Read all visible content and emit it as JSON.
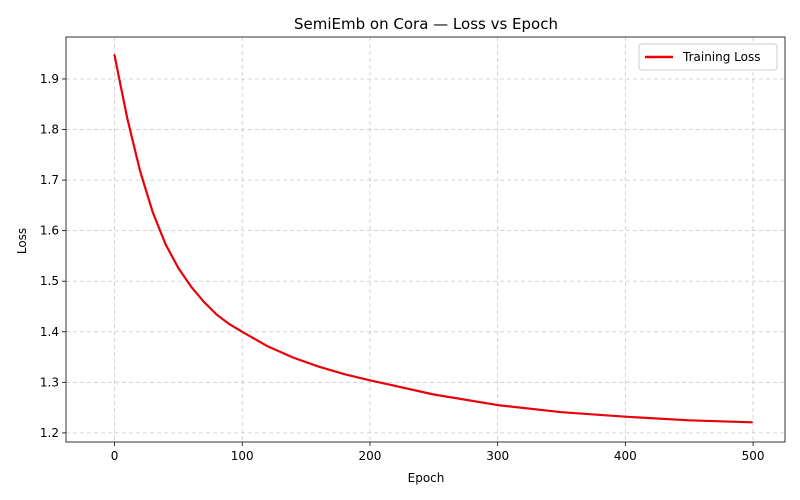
{
  "chart_data": {
    "type": "line",
    "title": "SemiEmb on Cora — Loss vs Epoch",
    "xlabel": "Epoch",
    "ylabel": "Loss",
    "xlim": [
      -38,
      525
    ],
    "ylim": [
      1.182,
      1.983
    ],
    "xticks": [
      0,
      100,
      200,
      300,
      400,
      500
    ],
    "yticks": [
      1.2,
      1.3,
      1.4,
      1.5,
      1.6,
      1.7,
      1.8,
      1.9
    ],
    "xtick_labels": [
      "0",
      "100",
      "200",
      "300",
      "400",
      "500"
    ],
    "ytick_labels": [
      "1.2",
      "1.3",
      "1.4",
      "1.5",
      "1.6",
      "1.7",
      "1.8",
      "1.9"
    ],
    "grid": true,
    "legend_position": "top-right",
    "series": [
      {
        "name": "Training Loss",
        "color": "#e8000b",
        "x": [
          0,
          10,
          20,
          30,
          40,
          50,
          60,
          70,
          80,
          90,
          100,
          120,
          140,
          160,
          180,
          200,
          250,
          300,
          350,
          400,
          450,
          499
        ],
        "values": [
          1.947,
          1.822,
          1.718,
          1.636,
          1.573,
          1.526,
          1.489,
          1.459,
          1.434,
          1.415,
          1.4,
          1.371,
          1.349,
          1.331,
          1.316,
          1.304,
          1.276,
          1.255,
          1.241,
          1.232,
          1.225,
          1.221
        ]
      }
    ]
  }
}
